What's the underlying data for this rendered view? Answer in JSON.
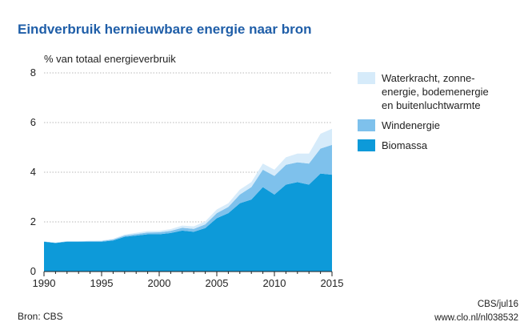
{
  "title": "Eindverbruik hernieuwbare energie naar bron",
  "colors": {
    "title": "#1f5ea8",
    "biomassa": "#0d9ad9",
    "wind": "#7ec1ec",
    "water": "#d6ebfa",
    "grid": "#b8b8b8"
  },
  "footer": {
    "source": "Bron: CBS",
    "credit_line1": "CBS/jul16",
    "credit_line2": "www.clo.nl/nl038532"
  },
  "chart_data": {
    "type": "area",
    "stacked": true,
    "title": "Eindverbruik hernieuwbare energie naar bron",
    "ylabel": "% van totaal energieverbruik",
    "xlabel": "",
    "ylim": [
      0,
      8
    ],
    "yticks": [
      0,
      2,
      4,
      6,
      8
    ],
    "xlim": [
      1990,
      2015
    ],
    "xticks": [
      1990,
      1995,
      2000,
      2005,
      2010,
      2015
    ],
    "grid": "horizontal",
    "legend_position": "right",
    "x": [
      1990,
      1991,
      1992,
      1993,
      1994,
      1995,
      1996,
      1997,
      1998,
      1999,
      2000,
      2001,
      2002,
      2003,
      2004,
      2005,
      2006,
      2007,
      2008,
      2009,
      2010,
      2011,
      2012,
      2013,
      2014,
      2015
    ],
    "series": [
      {
        "name": "Biomassa",
        "color_key": "biomassa",
        "values": [
          1.2,
          1.15,
          1.2,
          1.2,
          1.2,
          1.2,
          1.25,
          1.4,
          1.45,
          1.5,
          1.5,
          1.55,
          1.65,
          1.6,
          1.75,
          2.15,
          2.35,
          2.75,
          2.9,
          3.4,
          3.1,
          3.5,
          3.6,
          3.5,
          3.95,
          3.9
        ]
      },
      {
        "name": "Windenergie",
        "color_key": "wind",
        "values": [
          0.01,
          0.01,
          0.02,
          0.02,
          0.03,
          0.03,
          0.04,
          0.05,
          0.06,
          0.07,
          0.08,
          0.09,
          0.11,
          0.12,
          0.15,
          0.2,
          0.25,
          0.35,
          0.5,
          0.7,
          0.75,
          0.8,
          0.8,
          0.85,
          1.0,
          1.2
        ]
      },
      {
        "name": "Waterkracht, zonne-energie, bodemenergie en buitenluchtwarmte",
        "color_key": "water",
        "values": [
          0.0,
          0.0,
          0.0,
          0.0,
          0.01,
          0.02,
          0.03,
          0.04,
          0.05,
          0.06,
          0.06,
          0.07,
          0.09,
          0.1,
          0.12,
          0.15,
          0.15,
          0.2,
          0.2,
          0.25,
          0.25,
          0.3,
          0.35,
          0.4,
          0.6,
          0.65
        ]
      }
    ]
  },
  "legend": [
    {
      "color_key": "water",
      "lines": [
        "Waterkracht, zonne-",
        "energie, bodemenergie",
        "en buitenluchtwarmte"
      ]
    },
    {
      "color_key": "wind",
      "lines": [
        "Windenergie"
      ]
    },
    {
      "color_key": "biomassa",
      "lines": [
        "Biomassa"
      ]
    }
  ]
}
